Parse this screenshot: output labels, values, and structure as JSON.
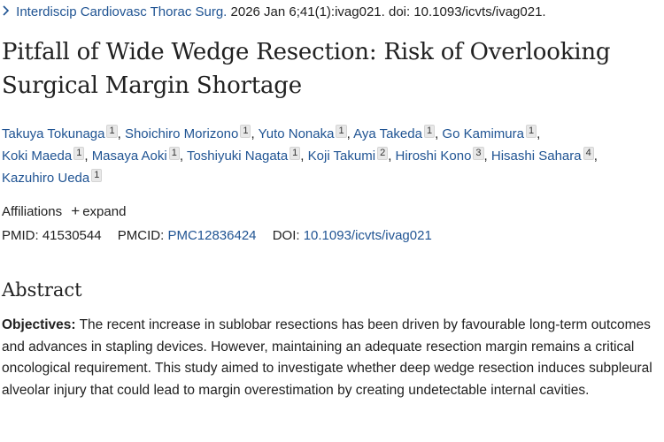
{
  "journal": {
    "name": "Interdiscip Cardiovasc Thorac Surg.",
    "citation": "2026 Jan 6;41(1):ivag021. doi: 10.1093/icvts/ivag021."
  },
  "article": {
    "title": "Pitfall of Wide Wedge Resection: Risk of Overlooking Surgical Margin Shortage"
  },
  "authors": [
    {
      "name": "Takuya Tokunaga",
      "aff": "1"
    },
    {
      "name": "Shoichiro Morizono",
      "aff": "1"
    },
    {
      "name": "Yuto Nonaka",
      "aff": "1"
    },
    {
      "name": "Aya Takeda",
      "aff": "1"
    },
    {
      "name": "Go Kamimura",
      "aff": "1"
    },
    {
      "name": "Koki Maeda",
      "aff": "1"
    },
    {
      "name": "Masaya Aoki",
      "aff": "1"
    },
    {
      "name": "Toshiyuki Nagata",
      "aff": "1"
    },
    {
      "name": "Koji Takumi",
      "aff": "2"
    },
    {
      "name": "Hiroshi Kono",
      "aff": "3"
    },
    {
      "name": "Hisashi Sahara",
      "aff": "4"
    },
    {
      "name": "Kazuhiro Ueda",
      "aff": "1"
    }
  ],
  "affiliations": {
    "label": "Affiliations",
    "expand_label": "expand"
  },
  "ids": {
    "pmid_label": "PMID:",
    "pmid": "41530544",
    "pmcid_label": "PMCID:",
    "pmcid": "PMC12836424",
    "doi_label": "DOI:",
    "doi": "10.1093/icvts/ivag021"
  },
  "abstract": {
    "heading": "Abstract",
    "objectives_label": "Objectives:",
    "objectives_text": "The recent increase in sublobar resections has been driven by favourable long-term outcomes and advances in stapling devices. However, maintaining an adequate resection margin remains a critical oncological requirement. This study aimed to investigate whether deep wedge resection induces subpleural alveolar injury that could lead to margin overestimation by creating undetectable internal cavities."
  },
  "colors": {
    "link": "#205493",
    "text": "#212121",
    "badge_bg": "#e8e8e8"
  }
}
